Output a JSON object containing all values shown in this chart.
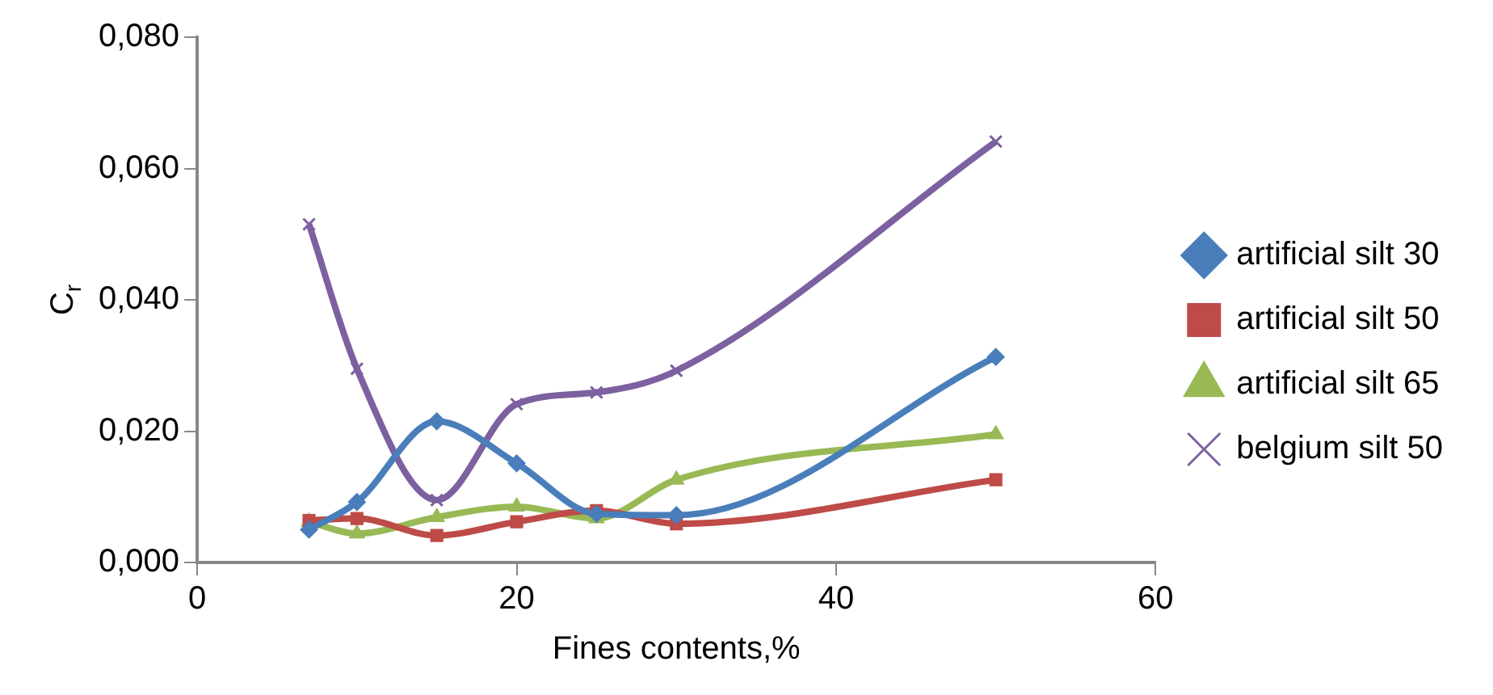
{
  "chart_data": {
    "type": "line",
    "xlabel": "Fines contents,%",
    "ylabel": "C$_{r}$",
    "x": [
      7,
      10,
      15,
      20,
      25,
      30,
      50
    ],
    "xlim": [
      0,
      60
    ],
    "xticks": [
      0,
      20,
      40,
      60
    ],
    "ylim": [
      0,
      0.08
    ],
    "yticks": [
      {
        "value": 0,
        "label": "0,000"
      },
      {
        "value": 0.02,
        "label": "0,020"
      },
      {
        "value": 0.04,
        "label": "0,040"
      },
      {
        "value": 0.06,
        "label": "0,060"
      },
      {
        "value": 0.08,
        "label": "0,080"
      }
    ],
    "grid": false,
    "legend": "right",
    "series": [
      {
        "name": "artificial silt 30",
        "color": "#4a7ebb",
        "marker": "diamond",
        "values": [
          0.005,
          0.0092,
          0.0215,
          0.0151,
          0.0074,
          0.0072,
          0.0313
        ]
      },
      {
        "name": "artificial silt 50",
        "color": "#be4b48",
        "marker": "square",
        "values": [
          0.0064,
          0.0067,
          0.0041,
          0.0062,
          0.0079,
          0.0059,
          0.0126
        ]
      },
      {
        "name": "artificial silt 65",
        "color": "#98b954",
        "marker": "triangle",
        "values": [
          0.0062,
          0.0044,
          0.0069,
          0.0085,
          0.0067,
          0.0126,
          0.0195
        ]
      },
      {
        "name": "belgium silt 50",
        "color": "#7d60a0",
        "marker": "cross",
        "values": [
          0.0515,
          0.0295,
          0.0095,
          0.0241,
          0.0259,
          0.0292,
          0.0641
        ]
      }
    ]
  }
}
